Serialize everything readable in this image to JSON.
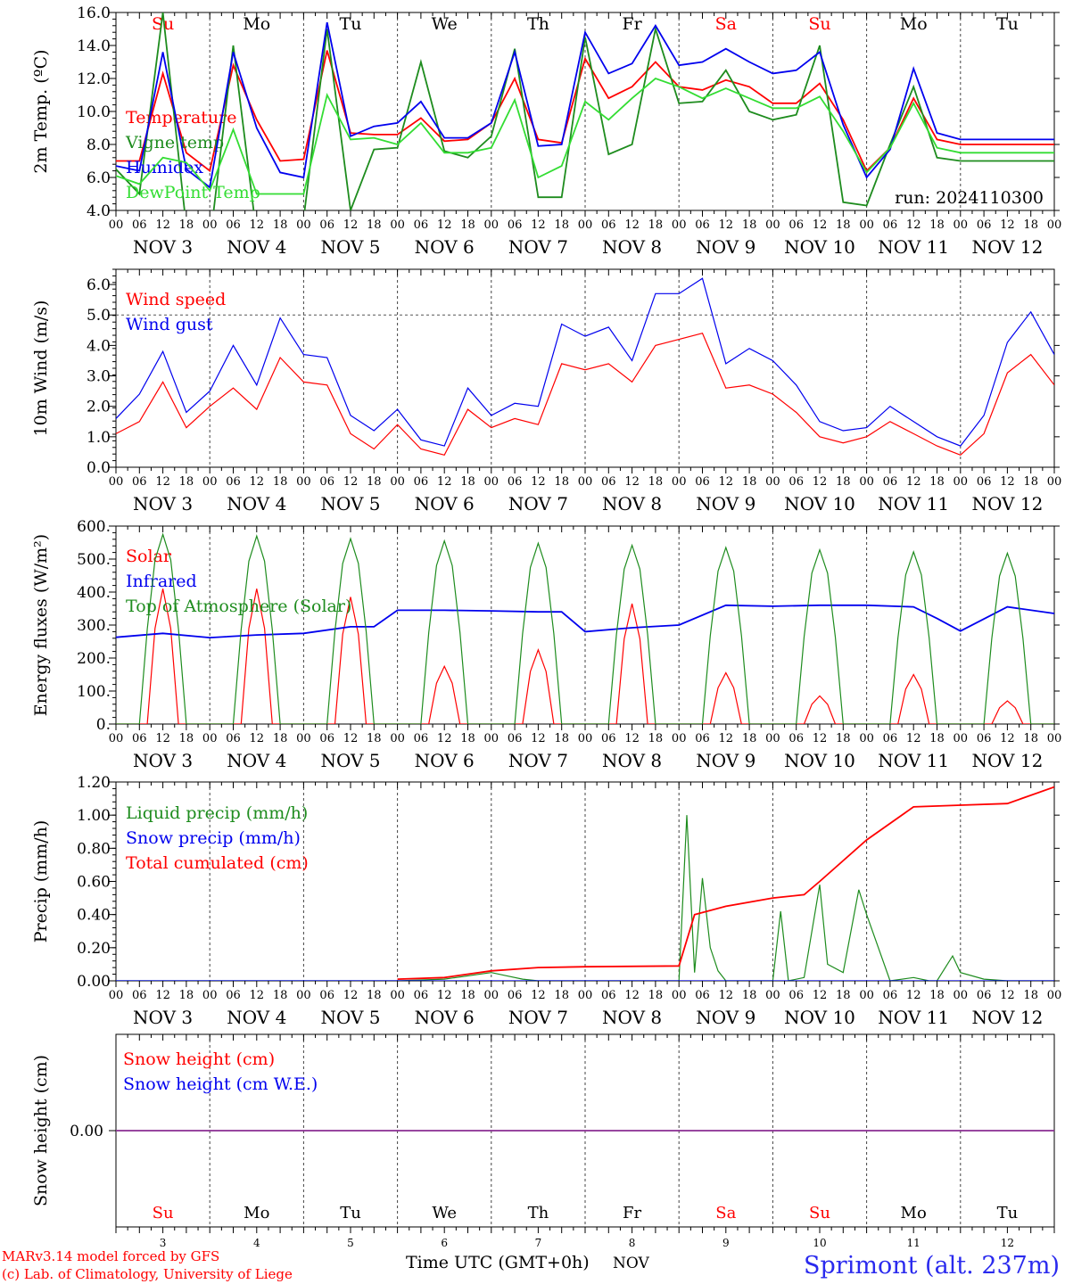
{
  "station": "Sprimont (alt. 237m)",
  "credits": {
    "line1": "MARv3.14 model forced by GFS",
    "line2": "(c) Lab. of Climatology, University of Liege"
  },
  "x_axis_label": "Time UTC (GMT+0h)",
  "month": "NOV",
  "hour_ticks": [
    "00",
    "06",
    "12",
    "18"
  ],
  "dates": [
    {
      "label": "NOV 3",
      "weekday": "Su",
      "weekend": true,
      "num": "3"
    },
    {
      "label": "NOV 4",
      "weekday": "Mo",
      "weekend": false,
      "num": "4"
    },
    {
      "label": "NOV 5",
      "weekday": "Tu",
      "weekend": false,
      "num": "5"
    },
    {
      "label": "NOV 6",
      "weekday": "We",
      "weekend": false,
      "num": "6"
    },
    {
      "label": "NOV 7",
      "weekday": "Th",
      "weekend": false,
      "num": "7"
    },
    {
      "label": "NOV 8",
      "weekday": "Fr",
      "weekend": false,
      "num": "8"
    },
    {
      "label": "NOV 9",
      "weekday": "Sa",
      "weekend": true,
      "num": "9"
    },
    {
      "label": "NOV 10",
      "weekday": "Su",
      "weekend": true,
      "num": "10"
    },
    {
      "label": "NOV 11",
      "weekday": "Mo",
      "weekend": false,
      "num": "11"
    },
    {
      "label": "NOV 12",
      "weekday": "Tu",
      "weekend": false,
      "num": "12"
    }
  ],
  "colors": {
    "red": "#ff0000",
    "green": "#1e8c1e",
    "blue": "#0000ee",
    "lightgreen": "#33dd33",
    "purple": "#7733aa",
    "weekend": "#ff0000",
    "station": "#2a2aee"
  },
  "chart_data": [
    {
      "id": "temp",
      "type": "line",
      "ylabel": "2m Temp. (ºC)",
      "ylim": [
        4,
        16
      ],
      "yticks": [
        "4.0",
        "6.0",
        "8.0",
        "10.0",
        "12.0",
        "14.0",
        "16.0"
      ],
      "run_label": "run: 2024110300",
      "x": [
        0,
        6,
        12,
        18,
        24,
        30,
        36,
        42,
        48,
        54,
        60,
        66,
        72,
        78,
        84,
        90,
        96,
        102,
        108,
        114,
        120,
        126,
        132,
        138,
        144,
        150,
        156,
        162,
        168,
        174,
        180,
        186,
        192,
        198,
        204,
        210,
        216,
        222,
        228,
        234,
        240
      ],
      "series": [
        {
          "name": "Temperature",
          "color": "red",
          "values": [
            7.0,
            7.0,
            12.3,
            7.5,
            6.4,
            12.8,
            9.5,
            7.0,
            7.1,
            13.7,
            8.7,
            8.6,
            8.6,
            9.6,
            8.2,
            8.3,
            9.3,
            12.0,
            8.3,
            8.1,
            13.2,
            10.8,
            11.5,
            13.0,
            11.5,
            11.3,
            11.9,
            11.5,
            10.5,
            10.5,
            11.7,
            9.5,
            6.4,
            7.8,
            10.8,
            8.3,
            8.0,
            8.0,
            8.0,
            8.0,
            8.0
          ]
        },
        {
          "name": "Vigne temp",
          "color": "green",
          "values": [
            6.5,
            5.0,
            16.0,
            3.0,
            2.0,
            14.0,
            2.5,
            2.0,
            3.5,
            15.0,
            4.0,
            7.7,
            7.8,
            13.0,
            7.6,
            7.2,
            8.5,
            13.8,
            4.8,
            4.8,
            14.5,
            7.4,
            8.0,
            15.0,
            10.5,
            10.6,
            12.5,
            10.0,
            9.5,
            9.8,
            14.0,
            4.5,
            4.3,
            8.0,
            11.5,
            7.2,
            7.0,
            7.0,
            7.0,
            7.0,
            7.0
          ]
        },
        {
          "name": "Humidex",
          "color": "blue",
          "values": [
            6.7,
            6.4,
            13.6,
            6.5,
            5.4,
            13.6,
            9.0,
            6.3,
            6.0,
            15.4,
            8.5,
            9.1,
            9.3,
            10.6,
            8.4,
            8.4,
            9.3,
            13.6,
            7.9,
            8.0,
            14.8,
            12.3,
            12.9,
            15.2,
            12.8,
            13.0,
            13.8,
            13.0,
            12.3,
            12.5,
            13.6,
            9.2,
            6.0,
            7.7,
            12.6,
            8.7,
            8.3,
            8.3,
            8.3,
            8.3,
            8.3
          ]
        },
        {
          "name": "DewPoint Temp",
          "color": "lightgreen",
          "values": [
            6.1,
            5.6,
            7.2,
            6.9,
            5.2,
            8.9,
            5.0,
            5.0,
            5.0,
            11.0,
            8.3,
            8.4,
            8.0,
            9.3,
            7.5,
            7.5,
            7.8,
            10.7,
            6.0,
            6.7,
            10.6,
            9.5,
            10.8,
            12.0,
            11.5,
            10.8,
            11.4,
            10.8,
            10.2,
            10.2,
            10.9,
            8.8,
            6.3,
            7.8,
            10.5,
            7.8,
            7.5,
            7.5,
            7.5,
            7.5,
            7.5
          ]
        }
      ]
    },
    {
      "id": "wind",
      "type": "line",
      "ylabel": "10m Wind (m/s)",
      "ylim": [
        0,
        6.5
      ],
      "yticks": [
        "0.0",
        "1.0",
        "2.0",
        "3.0",
        "4.0",
        "5.0",
        "6.0"
      ],
      "x": [
        0,
        6,
        12,
        18,
        24,
        30,
        36,
        42,
        48,
        54,
        60,
        66,
        72,
        78,
        84,
        90,
        96,
        102,
        108,
        114,
        120,
        126,
        132,
        138,
        144,
        150,
        156,
        162,
        168,
        174,
        180,
        186,
        192,
        198,
        204,
        210,
        216,
        222,
        228,
        234,
        240
      ],
      "series": [
        {
          "name": "Wind speed",
          "color": "red",
          "values": [
            1.1,
            1.5,
            2.8,
            1.3,
            2.0,
            2.6,
            1.9,
            3.6,
            2.8,
            2.7,
            1.1,
            0.6,
            1.4,
            0.6,
            0.4,
            1.9,
            1.3,
            1.6,
            1.4,
            3.4,
            3.2,
            3.4,
            2.8,
            4.0,
            4.2,
            4.4,
            2.6,
            2.7,
            2.4,
            1.8,
            1.0,
            0.8,
            1.0,
            1.5,
            1.1,
            0.7,
            0.4,
            1.1,
            3.1,
            3.7,
            2.7
          ]
        },
        {
          "name": "Wind gust",
          "color": "blue",
          "values": [
            1.6,
            2.4,
            3.8,
            1.8,
            2.5,
            4.0,
            2.7,
            4.9,
            3.7,
            3.6,
            1.7,
            1.2,
            1.9,
            0.9,
            0.7,
            2.6,
            1.7,
            2.1,
            2.0,
            4.7,
            4.3,
            4.6,
            3.5,
            5.7,
            5.7,
            6.2,
            3.4,
            3.9,
            3.5,
            2.7,
            1.5,
            1.2,
            1.3,
            2.0,
            1.5,
            1.0,
            0.7,
            1.7,
            4.1,
            5.1,
            3.7
          ]
        }
      ]
    },
    {
      "id": "energy",
      "type": "line",
      "ylabel": "Energy fluxes (W/m²)",
      "ylim": [
        0,
        600
      ],
      "yticks": [
        "0.",
        "100.",
        "200.",
        "300.",
        "400.",
        "500.",
        "600."
      ],
      "series": [
        {
          "name": "Solar",
          "color": "red",
          "peaks": [
            410,
            410,
            385,
            175,
            225,
            365,
            155,
            85,
            150,
            70
          ]
        },
        {
          "name": "Infrared",
          "color": "blue",
          "x": [
            0,
            12,
            24,
            36,
            48,
            60,
            66,
            72,
            84,
            96,
            108,
            114,
            120,
            132,
            144,
            156,
            168,
            180,
            192,
            204,
            210,
            216,
            228,
            240
          ],
          "values": [
            263,
            275,
            262,
            270,
            275,
            295,
            295,
            345,
            345,
            343,
            340,
            340,
            280,
            292,
            300,
            360,
            357,
            360,
            360,
            355,
            320,
            282,
            355,
            335
          ]
        },
        {
          "name": "Top of Atmosphere (Solar)",
          "color": "green",
          "peaks": [
            575,
            570,
            562,
            555,
            548,
            542,
            535,
            528,
            522,
            518
          ]
        }
      ]
    },
    {
      "id": "precip",
      "type": "line",
      "ylabel": "Precip (mm/h)",
      "ylim": [
        0,
        1.2
      ],
      "yticks": [
        "0.00",
        "0.20",
        "0.40",
        "0.60",
        "0.80",
        "1.00",
        "1.20"
      ],
      "series": [
        {
          "name": "Liquid precip (mm/h)",
          "color": "green",
          "x": [
            0,
            72,
            84,
            96,
            100,
            104,
            108,
            144,
            146,
            148,
            150,
            152,
            154,
            156,
            160,
            168,
            170,
            172,
            176,
            180,
            182,
            186,
            190,
            192,
            198,
            204,
            208,
            210,
            214,
            216,
            222,
            228,
            234,
            240
          ],
          "values": [
            0,
            0,
            0.01,
            0.05,
            0.03,
            0.01,
            0,
            0,
            1.0,
            0.05,
            0.62,
            0.2,
            0.06,
            0,
            0,
            0,
            0.42,
            0,
            0.02,
            0.58,
            0.1,
            0.05,
            0.55,
            0.4,
            0,
            0.02,
            0,
            0,
            0.15,
            0.05,
            0.01,
            0,
            0,
            0
          ]
        },
        {
          "name": "Snow precip (mm/h)",
          "color": "blue",
          "x": [
            0,
            240
          ],
          "values": [
            0,
            0
          ]
        },
        {
          "name": "Total cumulated (cm)",
          "color": "red",
          "x": [
            72,
            84,
            96,
            108,
            120,
            144,
            148,
            156,
            168,
            176,
            180,
            192,
            204,
            216,
            228,
            240
          ],
          "values": [
            0.01,
            0.02,
            0.06,
            0.08,
            0.085,
            0.09,
            0.4,
            0.45,
            0.5,
            0.52,
            0.6,
            0.85,
            1.05,
            1.06,
            1.07,
            1.17
          ]
        }
      ]
    },
    {
      "id": "snow",
      "type": "line",
      "ylabel": "Snow height (cm)",
      "ylim": [
        -1,
        1
      ],
      "yticks": [
        "0.00"
      ],
      "series": [
        {
          "name": "Snow height (cm)",
          "color": "red",
          "x": [
            0,
            240
          ],
          "values": [
            0,
            0
          ]
        },
        {
          "name": "Snow height (cm W.E.)",
          "color": "blue",
          "x": [
            0,
            240
          ],
          "values": [
            0,
            0
          ]
        }
      ]
    }
  ]
}
